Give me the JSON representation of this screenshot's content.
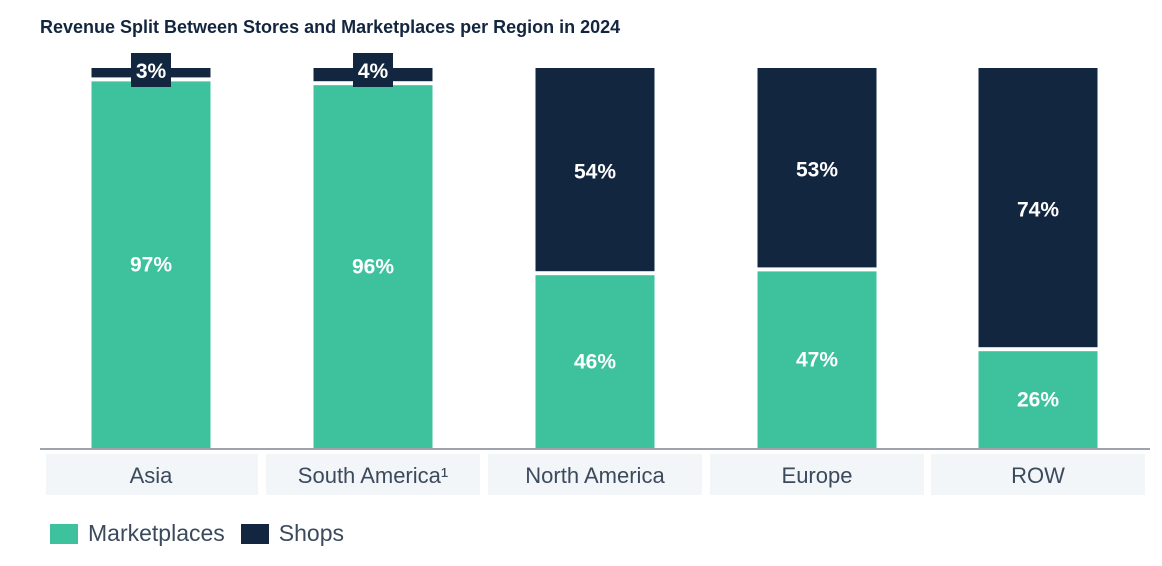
{
  "chart_data": {
    "type": "bar",
    "stacked": true,
    "title": "Revenue Split Between Stores and Marketplaces per Region in 2024",
    "categories": [
      "Asia",
      "South America¹",
      "North America",
      "Europe",
      "ROW"
    ],
    "series": [
      {
        "name": "Marketplaces",
        "color": "#3ec29e",
        "values": [
          97,
          96,
          46,
          47,
          26
        ],
        "labels": [
          "97%",
          "96%",
          "46%",
          "47%",
          "26%"
        ]
      },
      {
        "name": "Shops",
        "color": "#13263f",
        "values": [
          3,
          4,
          54,
          53,
          74
        ],
        "labels": [
          "3%",
          "4%",
          "54%",
          "53%",
          "74%"
        ]
      }
    ],
    "ylim": [
      0,
      100
    ],
    "legend_position": "bottom-left"
  }
}
